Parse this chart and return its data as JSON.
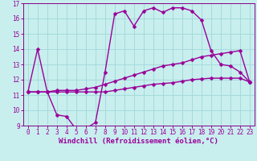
{
  "xlabel": "Windchill (Refroidissement éolien,°C)",
  "bg_color": "#c8eeee",
  "line_color": "#990099",
  "grid_color": "#a0d8d8",
  "spine_color": "#880088",
  "xlim": [
    -0.5,
    23.5
  ],
  "ylim": [
    9,
    17
  ],
  "xticks": [
    0,
    1,
    2,
    3,
    4,
    5,
    6,
    7,
    8,
    9,
    10,
    11,
    12,
    13,
    14,
    15,
    16,
    17,
    18,
    19,
    20,
    21,
    22,
    23
  ],
  "yticks": [
    9,
    10,
    11,
    12,
    13,
    14,
    15,
    16,
    17
  ],
  "line1_x": [
    0,
    1,
    2,
    3,
    4,
    5,
    6,
    7,
    8,
    9,
    10,
    11,
    12,
    13,
    14,
    15,
    16,
    17,
    18,
    19,
    20,
    21,
    22,
    23
  ],
  "line1_y": [
    11.2,
    14.0,
    11.2,
    9.7,
    9.6,
    8.75,
    8.8,
    9.2,
    12.5,
    16.3,
    16.5,
    15.5,
    16.5,
    16.7,
    16.4,
    16.7,
    16.7,
    16.5,
    15.9,
    13.9,
    13.0,
    12.9,
    12.5,
    11.85
  ],
  "line2_x": [
    0,
    1,
    2,
    3,
    4,
    5,
    6,
    7,
    8,
    9,
    10,
    11,
    12,
    13,
    14,
    15,
    16,
    17,
    18,
    19,
    20,
    21,
    22,
    23
  ],
  "line2_y": [
    11.2,
    11.2,
    11.2,
    11.3,
    11.3,
    11.3,
    11.4,
    11.5,
    11.7,
    11.9,
    12.1,
    12.3,
    12.5,
    12.7,
    12.9,
    13.0,
    13.1,
    13.3,
    13.5,
    13.6,
    13.7,
    13.8,
    13.9,
    11.85
  ],
  "line3_x": [
    0,
    1,
    2,
    3,
    4,
    5,
    6,
    7,
    8,
    9,
    10,
    11,
    12,
    13,
    14,
    15,
    16,
    17,
    18,
    19,
    20,
    21,
    22,
    23
  ],
  "line3_y": [
    11.2,
    11.2,
    11.2,
    11.2,
    11.2,
    11.2,
    11.2,
    11.2,
    11.2,
    11.3,
    11.4,
    11.5,
    11.6,
    11.7,
    11.75,
    11.8,
    11.9,
    12.0,
    12.05,
    12.1,
    12.1,
    12.1,
    12.1,
    11.85
  ],
  "marker": "D",
  "markersize": 2.5,
  "linewidth": 1.0,
  "tick_fontsize": 5.5,
  "label_fontsize": 6.5
}
